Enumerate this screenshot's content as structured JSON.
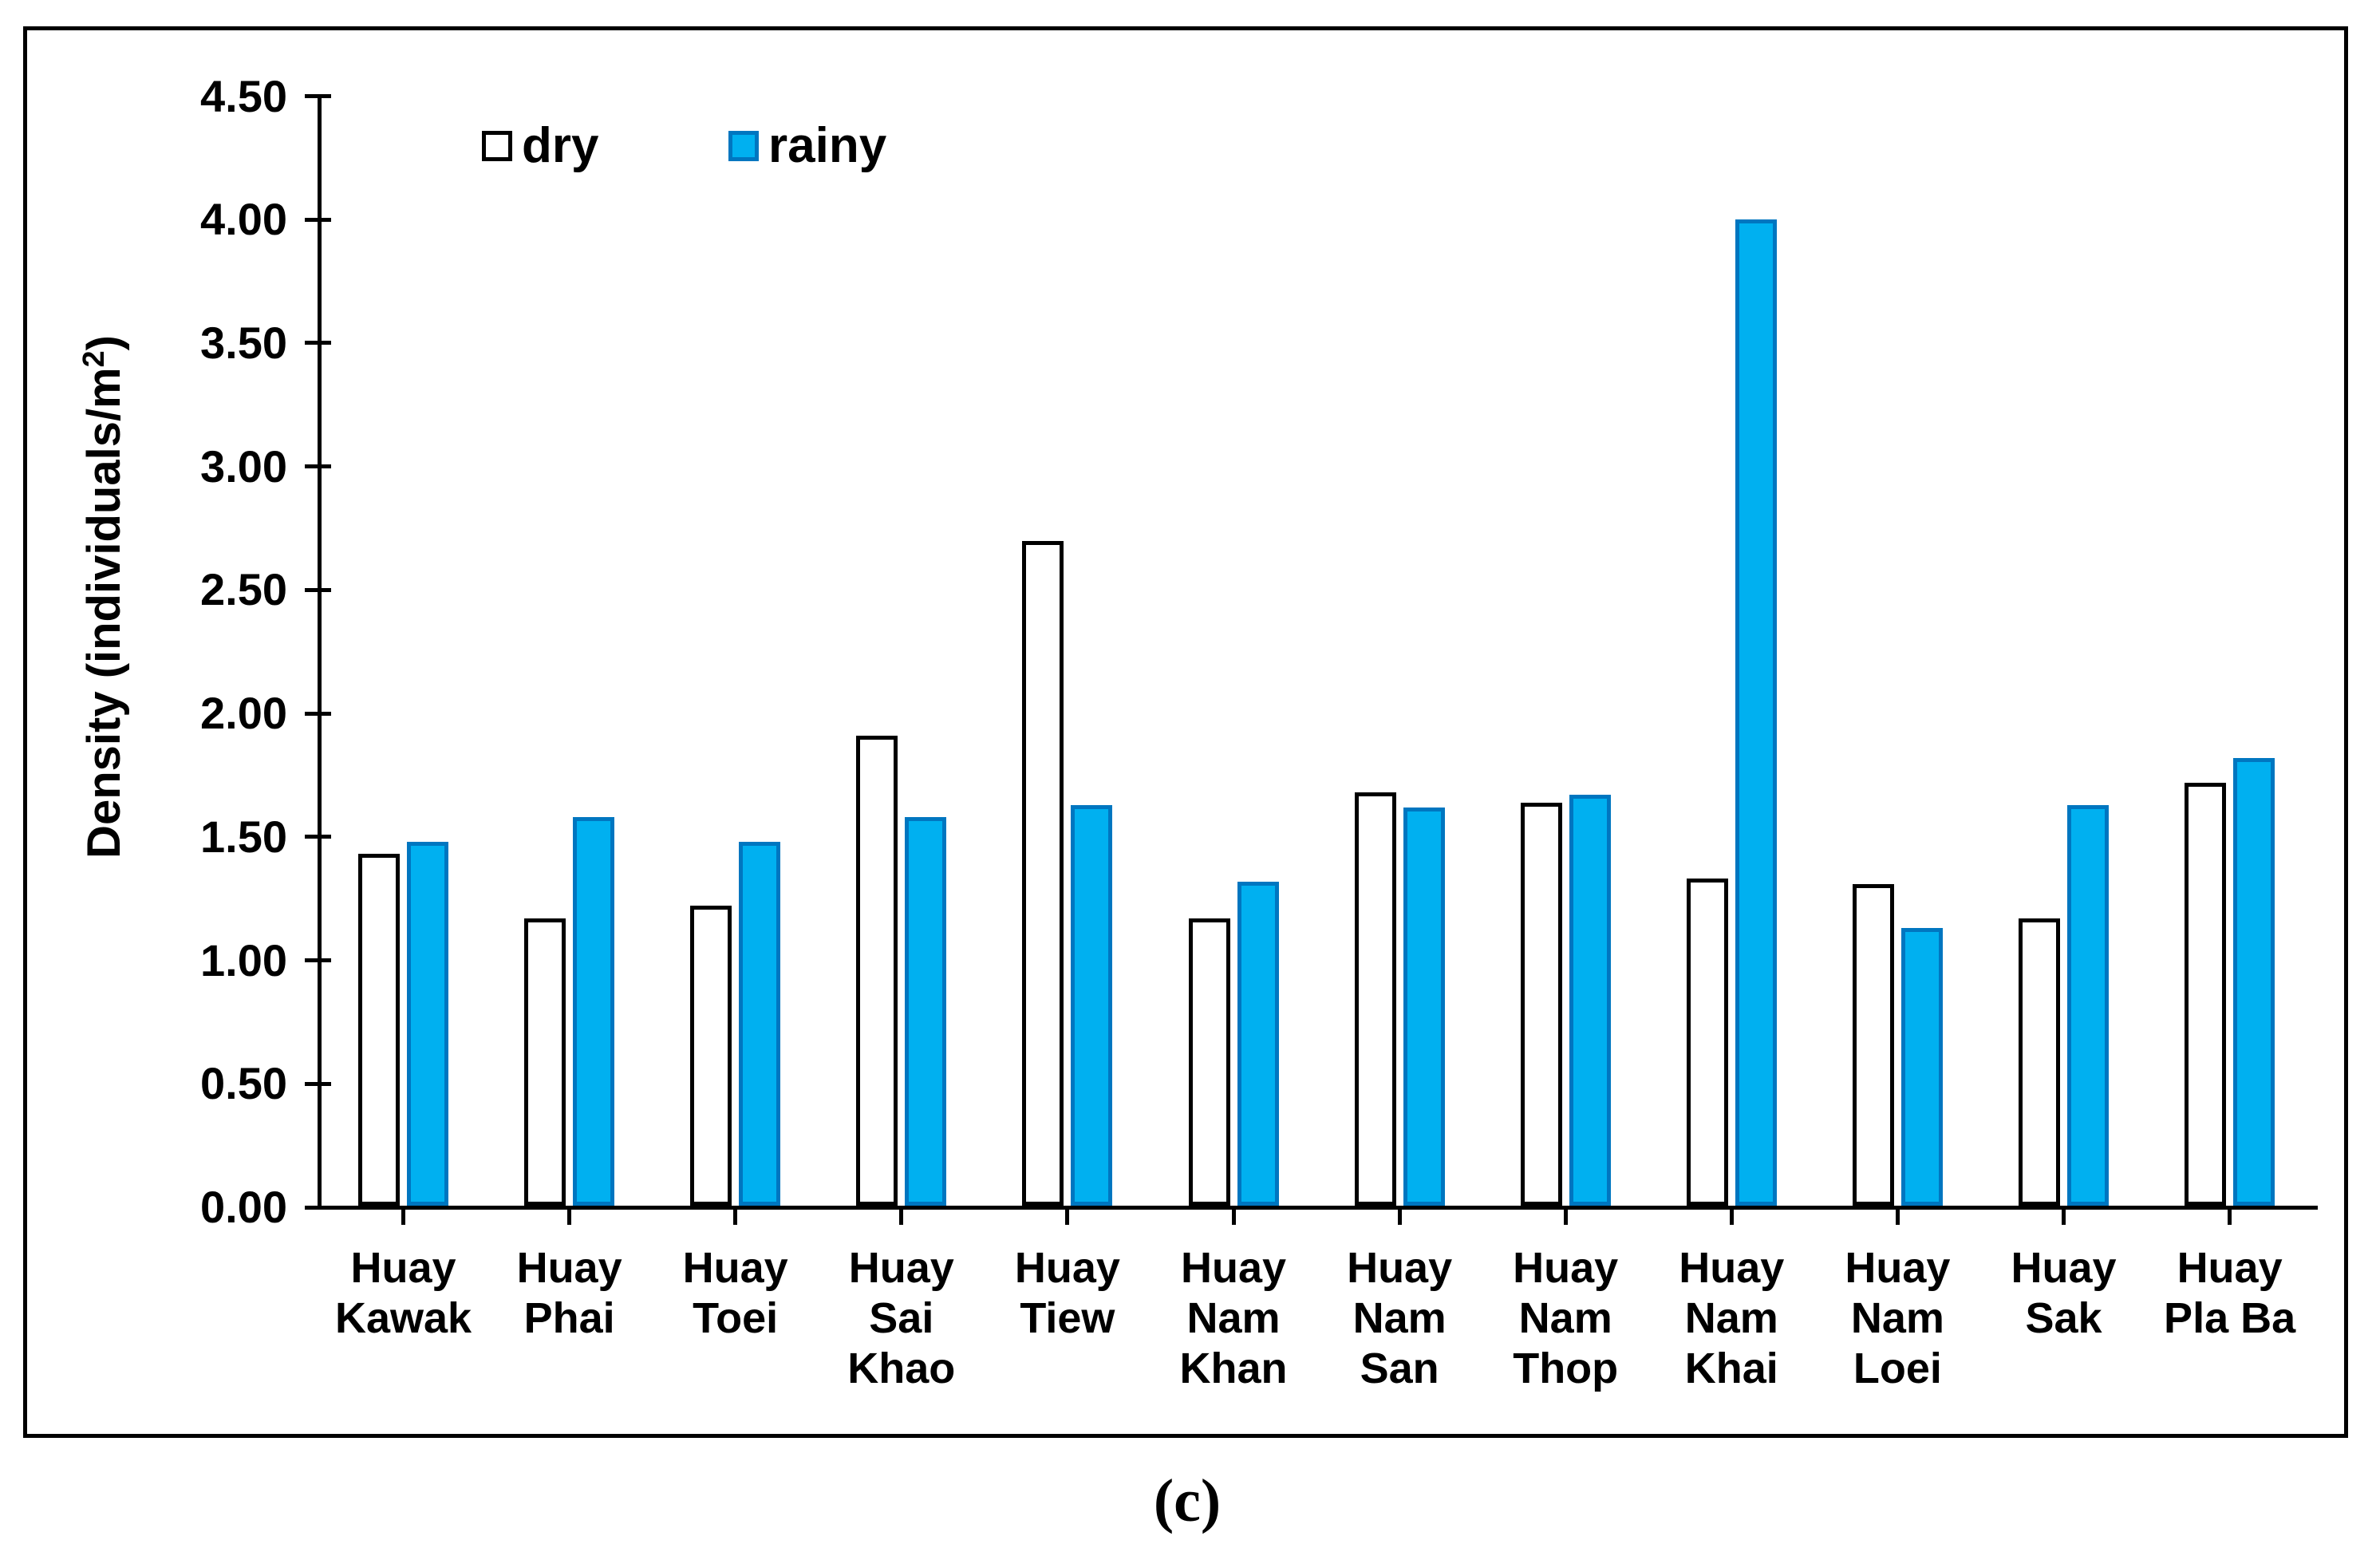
{
  "figure": {
    "caption": "(c)",
    "ylabel_parts": {
      "base": "Density (individuals/m",
      "sup": "2",
      "end": ")"
    }
  },
  "legend": {
    "dry_label": "dry",
    "rainy_label": "rainy"
  },
  "chart_data": {
    "type": "bar",
    "title": "",
    "xlabel": "",
    "ylabel": "Density (individuals/m²)",
    "ylim": [
      0,
      4.5
    ],
    "ytick_step": 0.5,
    "ytick_labels": [
      "0.00",
      "0.50",
      "1.00",
      "1.50",
      "2.00",
      "2.50",
      "3.00",
      "3.50",
      "4.00",
      "4.50"
    ],
    "grid": false,
    "legend_position": "top-left-inside",
    "categories": [
      "Huay Kawak",
      "Huay Phai",
      "Huay Toei",
      "Huay Sai Khao",
      "Huay Tiew",
      "Huay Nam Khan",
      "Huay Nam San",
      "Huay Nam Thop",
      "Huay Nam Khai",
      "Huay Nam Loei",
      "Huay Sak",
      "Huay Pla Ba"
    ],
    "category_label_lines": [
      [
        "Huay",
        "Kawak"
      ],
      [
        "Huay",
        "Phai"
      ],
      [
        "Huay",
        "Toei"
      ],
      [
        "Huay",
        "Sai",
        "Khao"
      ],
      [
        "Huay",
        "Tiew"
      ],
      [
        "Huay",
        "Nam",
        "Khan"
      ],
      [
        "Huay",
        "Nam",
        "San"
      ],
      [
        "Huay",
        "Nam",
        "Thop"
      ],
      [
        "Huay",
        "Nam",
        "Khai"
      ],
      [
        "Huay",
        "Nam",
        "Loei"
      ],
      [
        "Huay",
        "Sak"
      ],
      [
        "Huay",
        "Pla Ba"
      ]
    ],
    "series": [
      {
        "name": "dry",
        "fill": "#FFFFFF",
        "border": "#000000",
        "values": [
          1.43,
          1.17,
          1.22,
          1.91,
          2.7,
          1.17,
          1.68,
          1.64,
          1.33,
          1.31,
          1.17,
          1.72
        ]
      },
      {
        "name": "rainy",
        "fill": "#00B0F0",
        "border": "#0076C0",
        "values": [
          1.48,
          1.58,
          1.48,
          1.58,
          1.63,
          1.32,
          1.62,
          1.67,
          4.0,
          1.13,
          1.63,
          1.82
        ]
      }
    ]
  }
}
